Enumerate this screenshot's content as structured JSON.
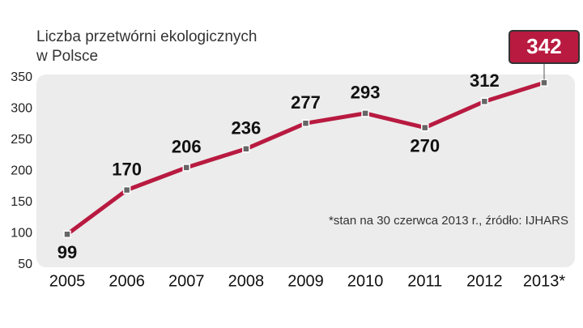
{
  "chart_data": {
    "type": "line",
    "title": [
      "Liczba przetwórni ekologicznych",
      "w Polsce"
    ],
    "note": "*stan na 30 czerwca 2013 r., źródło: IJHARS",
    "categories": [
      "2005",
      "2006",
      "2007",
      "2008",
      "2009",
      "2010",
      "2011",
      "2012",
      "2013*"
    ],
    "values": [
      99,
      170,
      206,
      236,
      277,
      293,
      270,
      312,
      342
    ],
    "color": "#b81a40",
    "ylim": [
      50,
      350
    ],
    "yticks": [
      50,
      100,
      150,
      200,
      250,
      300,
      350
    ],
    "grid": false
  }
}
